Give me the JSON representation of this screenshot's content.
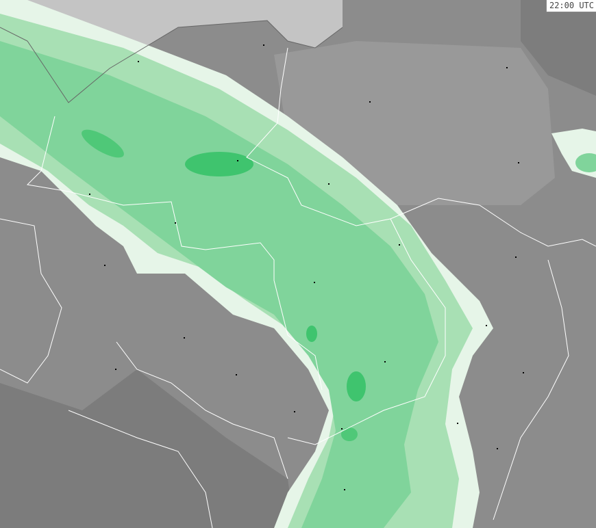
{
  "time_label": "22:00 UTC",
  "colors": {
    "sea": "#c4c4c4",
    "land_light": "#999999",
    "land_dark": "#7a7a7a",
    "precip_fringe": "#e6f5e8",
    "precip_light": "#a8e0b4",
    "precip_medium": "#7fd49a",
    "precip_heavy": "#3fc46e",
    "borders": "#ffffff",
    "cities": "#000000"
  }
}
